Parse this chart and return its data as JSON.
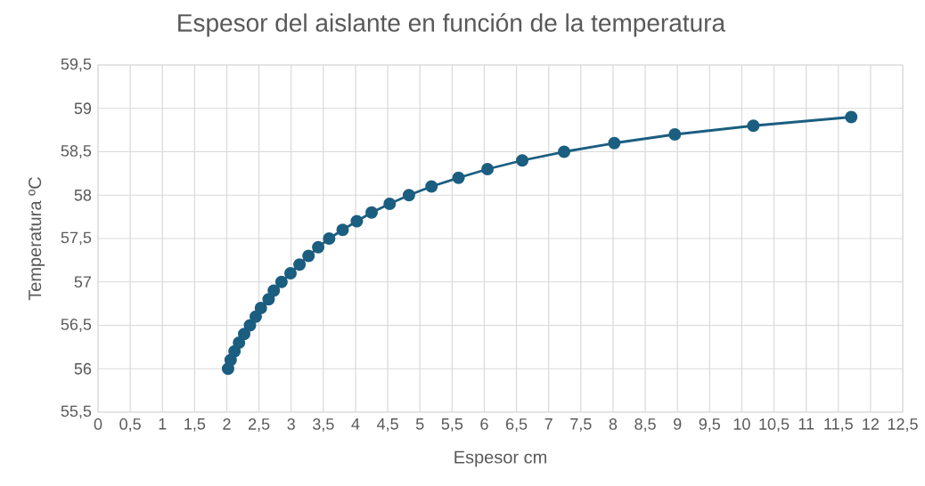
{
  "chart_data": {
    "type": "line",
    "title": "Espesor del aislante en función de la temperatura",
    "xlabel": "Espesor cm",
    "ylabel": "Temperatura ºC",
    "x": [
      2.02,
      2.06,
      2.12,
      2.19,
      2.27,
      2.36,
      2.45,
      2.53,
      2.65,
      2.73,
      2.85,
      2.99,
      3.13,
      3.27,
      3.42,
      3.59,
      3.8,
      4.02,
      4.25,
      4.53,
      4.83,
      5.18,
      5.6,
      6.05,
      6.59,
      7.24,
      8.02,
      8.96,
      10.18,
      11.7
    ],
    "values": [
      56,
      56.1,
      56.2,
      56.3,
      56.4,
      56.5,
      56.6,
      56.7,
      56.8,
      56.9,
      57,
      57.1,
      57.2,
      57.3,
      57.4,
      57.5,
      57.6,
      57.7,
      57.8,
      57.9,
      58,
      58.1,
      58.2,
      58.3,
      58.4,
      58.5,
      58.6,
      58.7,
      58.8,
      58.9
    ],
    "color": "#1b5e80",
    "marker": "circle",
    "grid": true,
    "xlim": [
      0,
      12.5
    ],
    "xticks": [
      0,
      {
        "value": 0.5,
        "label": "0,5"
      },
      1,
      {
        "value": 1.5,
        "label": "1,5"
      },
      2,
      {
        "value": 2.5,
        "label": "2,5"
      },
      3,
      {
        "value": 3.5,
        "label": "3,5"
      },
      4,
      {
        "value": 4.5,
        "label": "4,5"
      },
      5,
      {
        "value": 5.5,
        "label": "5,5"
      },
      6,
      {
        "value": 6.5,
        "label": "6,5"
      },
      7,
      {
        "value": 7.5,
        "label": "7,5"
      },
      8,
      {
        "value": 8.5,
        "label": "8,5"
      },
      9,
      {
        "value": 9.5,
        "label": "9,5"
      },
      10,
      {
        "value": 10.5,
        "label": "10,5"
      },
      11,
      {
        "value": 11.5,
        "label": "11,5"
      },
      12,
      {
        "value": 12.5,
        "label": "12,5"
      }
    ],
    "ylim": [
      55.5,
      59.5
    ],
    "yticks": [
      {
        "value": 55.5,
        "label": "55,5"
      },
      56,
      {
        "value": 56.5,
        "label": "56,5"
      },
      57,
      {
        "value": 57.5,
        "label": "57,5"
      },
      58,
      {
        "value": 58.5,
        "label": "58,5"
      },
      59,
      {
        "value": 59.5,
        "label": "59,5"
      }
    ]
  }
}
